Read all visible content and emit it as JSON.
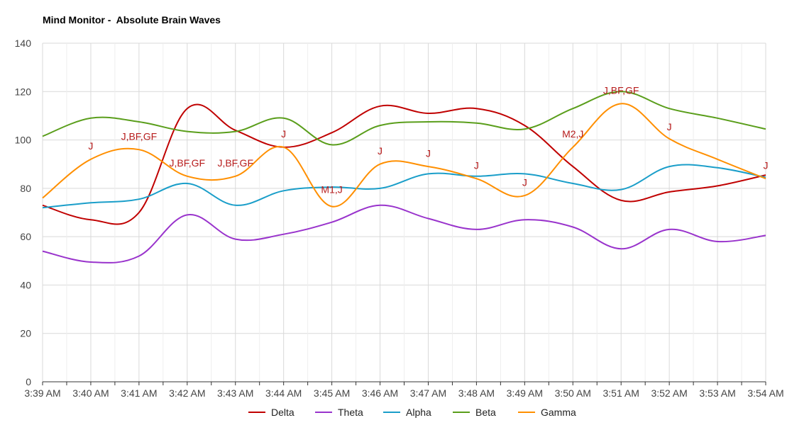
{
  "chart_data": {
    "type": "line",
    "title": "Mind Monitor -  Absolute Brain Waves",
    "categories": [
      "3:39 AM",
      "3:40 AM",
      "3:41 AM",
      "3:42 AM",
      "3:43 AM",
      "3:44 AM",
      "3:45 AM",
      "3:46 AM",
      "3:47 AM",
      "3:48 AM",
      "3:49 AM",
      "3:50 AM",
      "3:51 AM",
      "3:52 AM",
      "3:53 AM",
      "3:54 AM"
    ],
    "ylim": [
      0,
      140
    ],
    "yticks": [
      0,
      20,
      40,
      60,
      80,
      100,
      120,
      140
    ],
    "grid": true,
    "legend_position": "bottom",
    "series": [
      {
        "name": "Delta",
        "color": "#c00000",
        "values": [
          73,
          67,
          70,
          113,
          104,
          97,
          103,
          114,
          111,
          113,
          106,
          89,
          75,
          78.5,
          81,
          85.5
        ]
      },
      {
        "name": "Theta",
        "color": "#9933cc",
        "values": [
          54,
          49.5,
          52,
          69,
          59,
          61,
          66,
          73,
          67.5,
          63,
          67,
          64,
          55,
          63,
          58,
          60.5
        ]
      },
      {
        "name": "Alpha",
        "color": "#1a9ec9",
        "values": [
          72,
          74,
          75.5,
          82,
          73,
          79,
          80.5,
          80,
          86,
          85,
          86,
          82,
          79.5,
          89,
          88.5,
          84.5
        ]
      },
      {
        "name": "Beta",
        "color": "#5a9e1b",
        "values": [
          101.5,
          109,
          107.5,
          103.5,
          103.5,
          109,
          98,
          106,
          107.5,
          107,
          104.5,
          113,
          120,
          113,
          109,
          104.5
        ]
      },
      {
        "name": "Gamma",
        "color": "#ff8f00",
        "values": [
          76,
          92,
          96,
          85,
          85,
          97,
          72.5,
          90,
          89,
          84,
          77,
          97,
          115,
          100.5,
          92,
          84
        ]
      }
    ],
    "annotations": [
      {
        "text": "J",
        "x": "3:40 AM",
        "y": 96
      },
      {
        "text": "J,BF,GF",
        "x": "3:41 AM",
        "y": 100
      },
      {
        "text": "J,BF,GF",
        "x": "3:42 AM",
        "y": 89
      },
      {
        "text": "J,BF,GF",
        "x": "3:43 AM",
        "y": 89
      },
      {
        "text": "J",
        "x": "3:44 AM",
        "y": 101
      },
      {
        "text": "M1,J",
        "x": "3:45 AM",
        "y": 78
      },
      {
        "text": "J",
        "x": "3:46 AM",
        "y": 94
      },
      {
        "text": "J",
        "x": "3:47 AM",
        "y": 93
      },
      {
        "text": "J",
        "x": "3:48 AM",
        "y": 88
      },
      {
        "text": "J",
        "x": "3:49 AM",
        "y": 81
      },
      {
        "text": "M2,J",
        "x": "3:50 AM",
        "y": 101
      },
      {
        "text": "J,BF,GF",
        "x": "3:51 AM",
        "y": 119
      },
      {
        "text": "J",
        "x": "3:52 AM",
        "y": 104
      },
      {
        "text": "J",
        "x": "3:54 AM",
        "y": 88
      }
    ]
  }
}
